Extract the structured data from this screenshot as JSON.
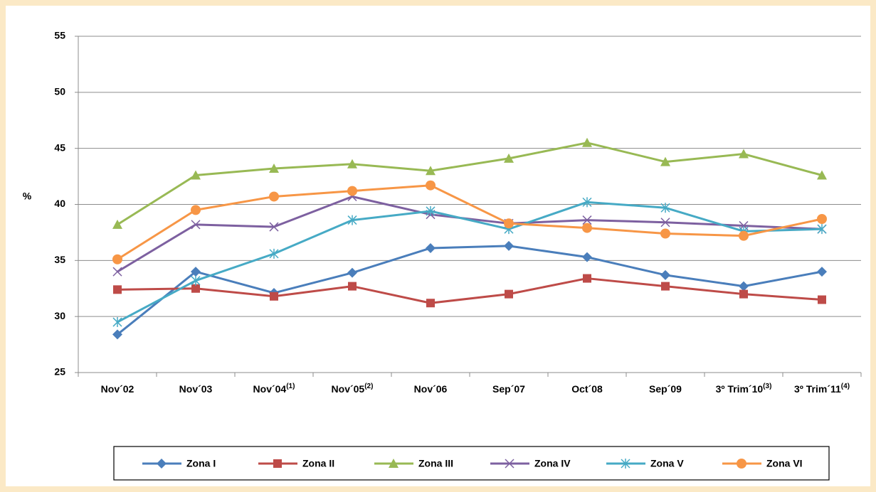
{
  "chart_data": {
    "type": "line",
    "y_label": "%",
    "categories": [
      "Nov´02",
      "Nov´03",
      "Nov´04",
      "Nov´05",
      "Nov´06",
      "Sep´07",
      "Oct´08",
      "Sep´09",
      "3º Trim´10",
      "3º Trim´11"
    ],
    "category_notes": [
      null,
      null,
      "(1)",
      "(2)",
      null,
      null,
      null,
      null,
      "(3)",
      "(4)"
    ],
    "ylim": [
      25,
      55
    ],
    "yticks": [
      25,
      30,
      35,
      40,
      45,
      50,
      55
    ],
    "grid": true,
    "legend": "bottom",
    "series": [
      {
        "name": "Zona I",
        "color": "#4a7ebb",
        "marker": "diamond",
        "values": [
          28.4,
          34.0,
          32.1,
          33.9,
          36.1,
          36.3,
          35.3,
          33.7,
          32.7,
          34.0
        ]
      },
      {
        "name": "Zona II",
        "color": "#be4b48",
        "marker": "square",
        "values": [
          32.4,
          32.5,
          31.8,
          32.7,
          31.2,
          32.0,
          33.4,
          32.7,
          32.0,
          31.5
        ]
      },
      {
        "name": "Zona III",
        "color": "#98b954",
        "marker": "triangle",
        "values": [
          38.2,
          42.6,
          43.2,
          43.6,
          43.0,
          44.1,
          45.5,
          43.8,
          44.5,
          42.6
        ]
      },
      {
        "name": "Zona IV",
        "color": "#7d60a0",
        "marker": "x",
        "values": [
          34.0,
          38.2,
          38.0,
          40.7,
          39.1,
          38.3,
          38.6,
          38.4,
          38.1,
          37.8
        ]
      },
      {
        "name": "Zona V",
        "color": "#46aac5",
        "marker": "star",
        "values": [
          29.5,
          33.2,
          35.6,
          38.6,
          39.4,
          37.8,
          40.2,
          39.7,
          37.6,
          37.8
        ]
      },
      {
        "name": "Zona VI",
        "color": "#f79646",
        "marker": "circle",
        "values": [
          35.1,
          39.5,
          40.7,
          41.2,
          41.7,
          38.3,
          37.9,
          37.4,
          37.2,
          38.7
        ]
      }
    ]
  }
}
